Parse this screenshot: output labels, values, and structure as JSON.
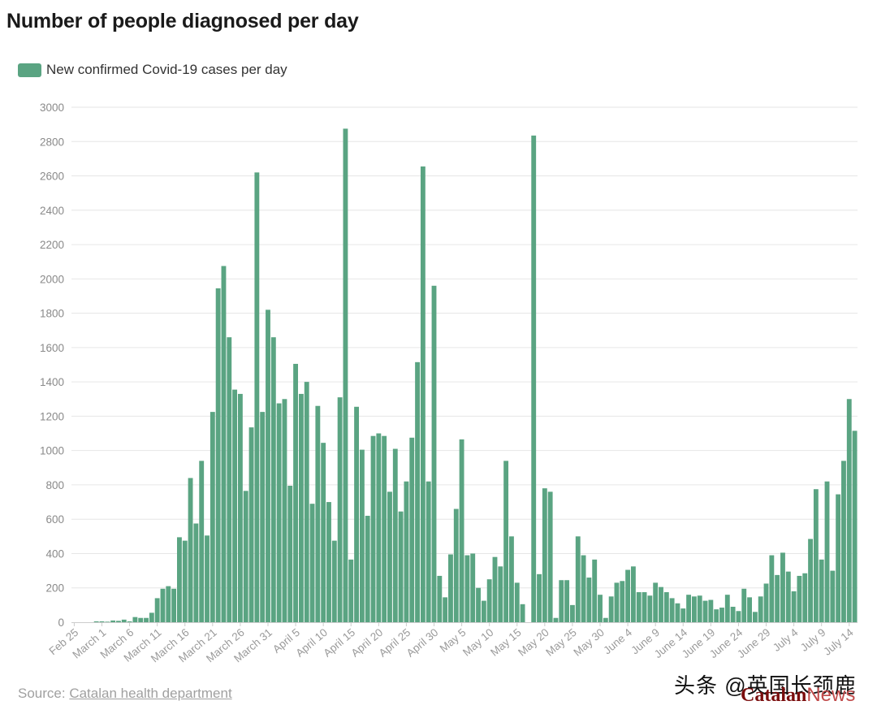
{
  "colors": {
    "bar": "#5aa482",
    "grid": "#e6e6e6",
    "axis": "#cccccc"
  },
  "footer": {
    "source_prefix": "Source: ",
    "source_link": "Catalan health department",
    "watermark": "头条 @英国长颈鹿",
    "logo_a": "Catalan",
    "logo_b": "News"
  },
  "chart_data": {
    "type": "bar",
    "title": "Number of people diagnosed per day",
    "legend": [
      "New confirmed Covid-19 cases per day"
    ],
    "legend_position": "top-left",
    "grid": true,
    "ylim": [
      0,
      3000
    ],
    "yticks": [
      0,
      200,
      400,
      600,
      800,
      1000,
      1200,
      1400,
      1600,
      1800,
      2000,
      2200,
      2400,
      2600,
      2800,
      3000
    ],
    "x_tick_labels": [
      "Feb 25",
      "March 1",
      "March 6",
      "March 11",
      "March 16",
      "March 21",
      "March 26",
      "March 31",
      "April 5",
      "April 10",
      "April 15",
      "April 20",
      "April 25",
      "April 30",
      "May 5",
      "May 10",
      "May 15",
      "May 20",
      "May 25",
      "May 30",
      "June 4",
      "June 9",
      "June 14",
      "June 19",
      "June 24",
      "June 29",
      "July 4",
      "July 9",
      "July 14"
    ],
    "x_start": "Feb 25",
    "series": [
      {
        "name": "New confirmed Covid-19 cases per day",
        "values": [
          0,
          0,
          0,
          0,
          5,
          5,
          3,
          10,
          8,
          15,
          5,
          30,
          25,
          25,
          55,
          140,
          195,
          210,
          195,
          495,
          475,
          840,
          575,
          940,
          505,
          1225,
          1945,
          2075,
          1660,
          1355,
          1330,
          765,
          1135,
          2620,
          1225,
          1820,
          1660,
          1275,
          1300,
          795,
          1505,
          1330,
          1400,
          690,
          1260,
          1045,
          700,
          475,
          1310,
          2875,
          365,
          1255,
          1005,
          620,
          1085,
          1100,
          1085,
          760,
          1010,
          645,
          820,
          1075,
          1515,
          2655,
          820,
          1960,
          270,
          145,
          395,
          660,
          1065,
          390,
          400,
          200,
          125,
          250,
          380,
          325,
          940,
          500,
          230,
          105,
          0,
          2835,
          280,
          780,
          760,
          25,
          245,
          245,
          100,
          500,
          390,
          260,
          365,
          160,
          25,
          150,
          230,
          240,
          305,
          325,
          175,
          175,
          155,
          230,
          205,
          175,
          140,
          110,
          80,
          160,
          150,
          155,
          125,
          130,
          75,
          85,
          160,
          90,
          65,
          195,
          145,
          60,
          150,
          225,
          390,
          275,
          405,
          295,
          180,
          270,
          285,
          485,
          775,
          365,
          820,
          300,
          745,
          940,
          1300,
          1115
        ]
      }
    ]
  }
}
